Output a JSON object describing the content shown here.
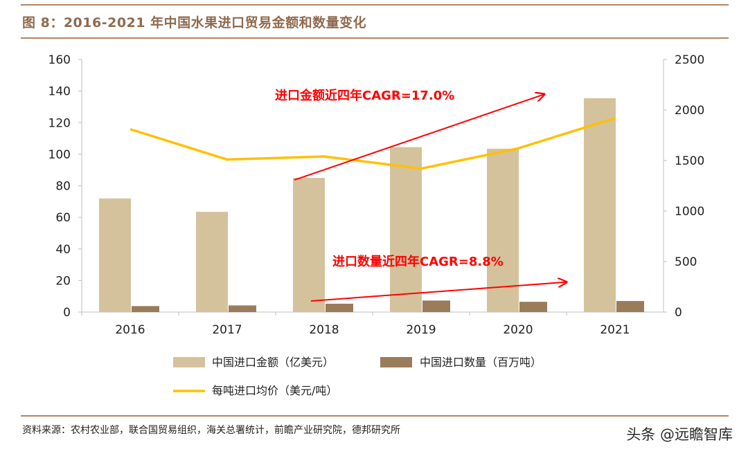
{
  "figure": {
    "title": "图 8：2016-2021 年中国水果进口贸易金额和数量变化",
    "source": "资料来源：农村农业部，联合国贸易组织，海关总署统计，前瞻产业研究院，德邦研究所",
    "watermark": "头条 @远瞻智库"
  },
  "chart_data": {
    "type": "bar",
    "categories": [
      "2016",
      "2017",
      "2018",
      "2019",
      "2020",
      "2021"
    ],
    "series": [
      {
        "name": "中国进口金额（亿美元）",
        "kind": "bar",
        "axis": "left",
        "color": "#d4c29c",
        "values": [
          72,
          63.5,
          85,
          104.5,
          103.5,
          135.5
        ]
      },
      {
        "name": "中国进口数量（百万吨）",
        "kind": "bar",
        "axis": "left",
        "color": "#9a7b5a",
        "values": [
          3.8,
          4.2,
          5.3,
          7.3,
          6.5,
          7.0
        ]
      },
      {
        "name": "每吨进口均价（美元/吨）",
        "kind": "line",
        "axis": "right",
        "color": "#ffc000",
        "values": [
          1810,
          1510,
          1540,
          1420,
          1620,
          1920
        ]
      }
    ],
    "y_left": {
      "range": [
        0,
        160
      ],
      "ticks": [
        0,
        20,
        40,
        60,
        80,
        100,
        120,
        140,
        160
      ]
    },
    "y_right": {
      "range": [
        0,
        2500
      ],
      "ticks": [
        0,
        500,
        1000,
        1500,
        2000,
        2500
      ]
    },
    "legend_position": "bottom",
    "annotations": [
      {
        "text": "进口金额近四年CAGR=17.0%",
        "color": "#ff0000",
        "arrow_from": [
          "2018",
          85
        ],
        "arrow_to": [
          "2021",
          138
        ]
      },
      {
        "text": "进口数量近四年CAGR=8.8%",
        "color": "#ff0000",
        "arrow_from": [
          "2018",
          7
        ],
        "arrow_to": [
          "2020.5",
          19
        ]
      }
    ]
  }
}
